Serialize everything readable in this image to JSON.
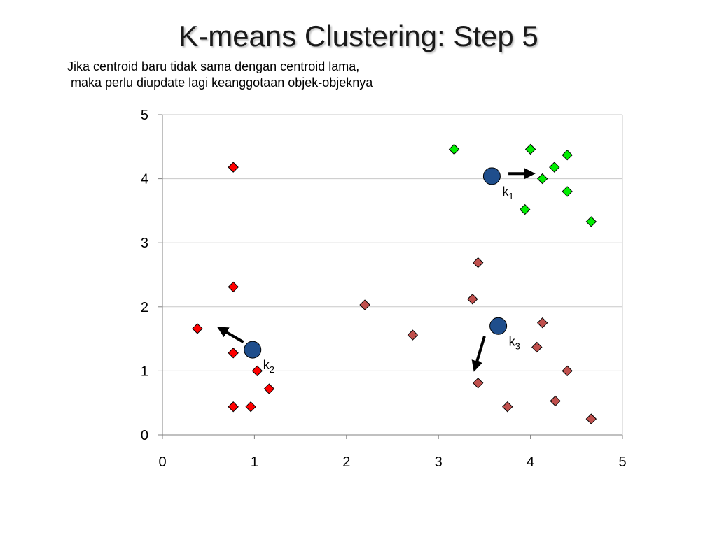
{
  "slide": {
    "title": "K-means Clustering: Step 5",
    "subtitle_line1": "Jika centroid baru tidak sama dengan centroid lama,",
    "subtitle_line2": " maka perlu diupdate lagi keanggotaan objek-objeknya"
  },
  "colors": {
    "red": "#ff0000",
    "green": "#00ee00",
    "brown": "#c0504d",
    "centroid": "#1f4e8c",
    "grid": "#c8c8c8",
    "axis": "#808080"
  },
  "chart_data": {
    "type": "scatter",
    "xlim": [
      0,
      5
    ],
    "ylim": [
      0,
      5
    ],
    "x_ticks": [
      "0",
      "1",
      "2",
      "3",
      "4",
      "5"
    ],
    "y_ticks": [
      "0",
      "1",
      "2",
      "3",
      "4",
      "5"
    ],
    "grid": "horizontal",
    "series": [
      {
        "marker": "diamond",
        "color": "#ff0000",
        "points": [
          [
            0.77,
            4.18
          ],
          [
            0.77,
            2.31
          ],
          [
            0.38,
            1.66
          ],
          [
            0.77,
            1.28
          ],
          [
            1.03,
            1.0
          ],
          [
            1.16,
            0.72
          ],
          [
            0.77,
            0.44
          ],
          [
            0.96,
            0.44
          ]
        ]
      },
      {
        "marker": "diamond",
        "color": "#00ee00",
        "points": [
          [
            3.17,
            4.46
          ],
          [
            4.0,
            4.46
          ],
          [
            4.4,
            4.37
          ],
          [
            4.26,
            4.18
          ],
          [
            4.13,
            4.0
          ],
          [
            4.4,
            3.8
          ],
          [
            3.94,
            3.52
          ],
          [
            4.66,
            3.33
          ]
        ]
      },
      {
        "marker": "diamond",
        "color": "#c0504d",
        "points": [
          [
            3.43,
            2.69
          ],
          [
            2.2,
            2.03
          ],
          [
            3.37,
            2.12
          ],
          [
            4.13,
            1.75
          ],
          [
            2.72,
            1.56
          ],
          [
            4.07,
            1.37
          ],
          [
            4.4,
            1.0
          ],
          [
            3.43,
            0.81
          ],
          [
            3.75,
            0.44
          ],
          [
            4.27,
            0.53
          ],
          [
            4.66,
            0.25
          ]
        ]
      }
    ],
    "centroids": [
      {
        "label": "k",
        "sub": "1",
        "x": 3.58,
        "y": 4.04,
        "arrow": [
          [
            3.76,
            4.08
          ],
          [
            4.0,
            4.08
          ]
        ]
      },
      {
        "label": "k",
        "sub": "2",
        "x": 0.98,
        "y": 1.33,
        "arrow": [
          [
            0.88,
            1.45
          ],
          [
            0.64,
            1.65
          ]
        ]
      },
      {
        "label": "k",
        "sub": "3",
        "x": 3.65,
        "y": 1.7,
        "arrow": [
          [
            3.5,
            1.54
          ],
          [
            3.4,
            1.06
          ]
        ]
      }
    ]
  }
}
